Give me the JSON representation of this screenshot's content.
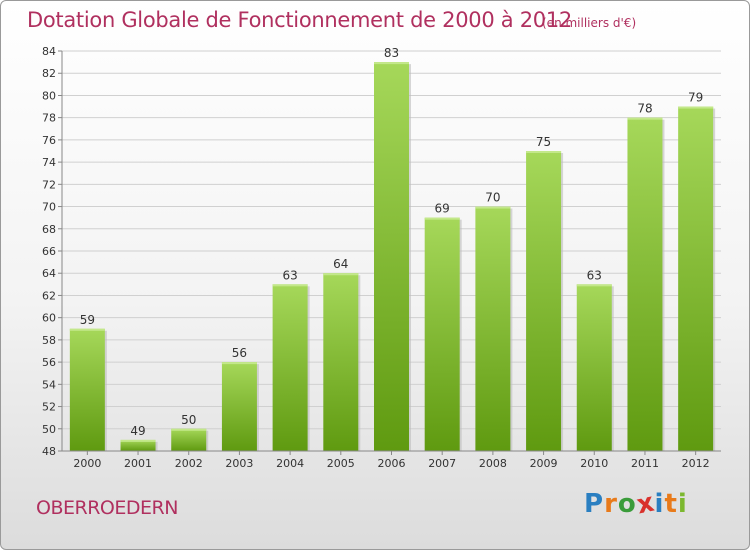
{
  "header": {
    "title": "Dotation Globale de Fonctionnement de 2000 à 2012",
    "unit_note": "(en milliers d'€)"
  },
  "footer": {
    "commune": "OBERROEDERN",
    "logo_text": "Proxiti",
    "logo_letter_colors": [
      "#2a7fc1",
      "#e87a1a",
      "#3a9c3a",
      "#d9312c",
      "#2a7fc1",
      "#e87a1a",
      "#7cb82f"
    ]
  },
  "colors": {
    "title": "#b0305f",
    "bar_top": "#a6d85a",
    "bar_bottom": "#5f9a10",
    "grid": "#d0d0d0"
  },
  "chart_data": {
    "type": "bar",
    "title": "Dotation Globale de Fonctionnement de 2000 à 2012",
    "subtitle": "(en milliers d'€)",
    "xlabel": "",
    "ylabel": "",
    "categories": [
      "2000",
      "2001",
      "2002",
      "2003",
      "2004",
      "2005",
      "2006",
      "2007",
      "2008",
      "2009",
      "2010",
      "2011",
      "2012"
    ],
    "values": [
      59,
      49,
      50,
      56,
      63,
      64,
      83,
      69,
      70,
      75,
      63,
      78,
      79
    ],
    "ylim": [
      48,
      84
    ],
    "yticks": [
      48,
      50,
      52,
      54,
      56,
      58,
      60,
      62,
      64,
      66,
      68,
      70,
      72,
      74,
      76,
      78,
      80,
      82,
      84
    ],
    "grid": "horizontal",
    "data_labels": true,
    "legend": "none"
  }
}
